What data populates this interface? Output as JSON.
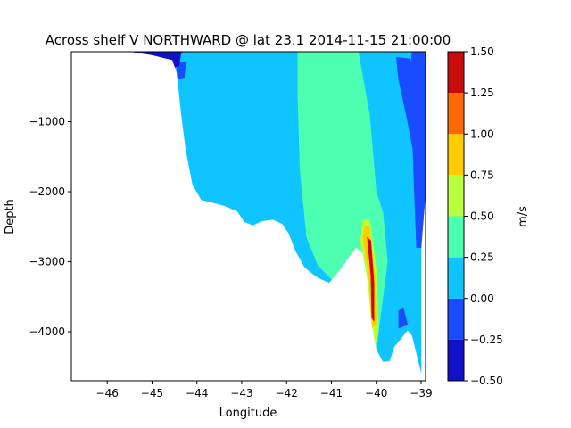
{
  "chart_data": {
    "type": "heatmap",
    "subtype": "filled-contour depth section",
    "title": "Across shelf V NORTHWARD @ lat 23.1 2014-11-15 21:00:00",
    "xlabel": "Longitude",
    "ylabel": "Depth",
    "xlim": [
      -46.8,
      -38.9
    ],
    "ylim": [
      -4700,
      0
    ],
    "xticks": [
      -46,
      -45,
      -44,
      -43,
      -42,
      -41,
      -40,
      -39
    ],
    "xtick_labels": [
      "−46",
      "−45",
      "−44",
      "−43",
      "−42",
      "−41",
      "−40",
      "−39"
    ],
    "yticks": [
      -1000,
      -2000,
      -3000,
      -4000
    ],
    "ytick_labels": [
      "−1000",
      "−2000",
      "−3000",
      "−4000"
    ],
    "grid": false,
    "colorbar": {
      "label": "m/s",
      "levels": [
        -0.5,
        -0.25,
        0.0,
        0.25,
        0.5,
        0.75,
        1.0,
        1.25,
        1.5
      ],
      "tick_labels": [
        "−0.50",
        "−0.25",
        "0.00",
        "0.25",
        "0.50",
        "0.75",
        "1.00",
        "1.25",
        "1.50"
      ],
      "colors": [
        "#1010c8",
        "#1a4cff",
        "#10c4ff",
        "#4dffb0",
        "#b8ff40",
        "#ffcc00",
        "#ff6a00",
        "#c80c0c"
      ]
    },
    "bathymetry": [
      [
        -46.8,
        0
      ],
      [
        -45.5,
        0
      ],
      [
        -45.0,
        -50
      ],
      [
        -44.55,
        -120
      ],
      [
        -44.45,
        -300
      ],
      [
        -44.35,
        -900
      ],
      [
        -44.25,
        -1400
      ],
      [
        -44.1,
        -1900
      ],
      [
        -43.9,
        -2120
      ],
      [
        -43.7,
        -2150
      ],
      [
        -43.4,
        -2200
      ],
      [
        -43.1,
        -2280
      ],
      [
        -42.95,
        -2430
      ],
      [
        -42.75,
        -2480
      ],
      [
        -42.55,
        -2420
      ],
      [
        -42.3,
        -2400
      ],
      [
        -42.1,
        -2460
      ],
      [
        -41.95,
        -2600
      ],
      [
        -41.8,
        -2850
      ],
      [
        -41.6,
        -3080
      ],
      [
        -41.45,
        -3160
      ],
      [
        -41.3,
        -3230
      ],
      [
        -41.05,
        -3300
      ],
      [
        -40.85,
        -3150
      ],
      [
        -40.65,
        -2970
      ],
      [
        -40.45,
        -2800
      ],
      [
        -40.3,
        -2880
      ],
      [
        -40.2,
        -3250
      ],
      [
        -40.1,
        -3900
      ],
      [
        -40.0,
        -4250
      ],
      [
        -39.85,
        -4430
      ],
      [
        -39.7,
        -4420
      ],
      [
        -39.6,
        -4220
      ],
      [
        -39.45,
        -4100
      ],
      [
        -39.3,
        -3980
      ],
      [
        -39.2,
        -4060
      ],
      [
        -39.1,
        -4320
      ],
      [
        -38.98,
        -4640
      ],
      [
        -38.9,
        -4700
      ]
    ],
    "regions": [
      {
        "level": 0.125,
        "points": [
          [
            -46.0,
            0
          ],
          [
            -39.0,
            0
          ],
          [
            -39.0,
            -4700
          ],
          [
            -46.0,
            -4700
          ]
        ]
      },
      {
        "level": -0.125,
        "points": [
          [
            -45.6,
            0
          ],
          [
            -44.3,
            0
          ],
          [
            -44.45,
            -80
          ],
          [
            -44.45,
            -400
          ],
          [
            -44.28,
            -380
          ],
          [
            -44.25,
            -150
          ],
          [
            -44.9,
            -140
          ],
          [
            -45.3,
            -80
          ]
        ]
      },
      {
        "level": -0.375,
        "points": [
          [
            -45.4,
            0
          ],
          [
            -44.35,
            0
          ],
          [
            -44.4,
            -200
          ],
          [
            -44.55,
            -240
          ],
          [
            -44.6,
            -100
          ],
          [
            -45.0,
            -100
          ]
        ]
      },
      {
        "level": 0.375,
        "points": [
          [
            -41.75,
            0
          ],
          [
            -40.4,
            0
          ],
          [
            -40.15,
            -900
          ],
          [
            -40.0,
            -2000
          ],
          [
            -39.85,
            -2300
          ],
          [
            -39.75,
            -3000
          ],
          [
            -39.85,
            -3500
          ],
          [
            -39.95,
            -4000
          ],
          [
            -40.0,
            -4300
          ],
          [
            -40.2,
            -3800
          ],
          [
            -40.55,
            -3100
          ],
          [
            -41.0,
            -3250
          ],
          [
            -41.3,
            -3050
          ],
          [
            -41.55,
            -2650
          ],
          [
            -41.7,
            -1700
          ],
          [
            -41.75,
            -600
          ]
        ]
      },
      {
        "level": -0.125,
        "points": [
          [
            -39.55,
            -80
          ],
          [
            -39.25,
            -100
          ],
          [
            -39.1,
            -400
          ],
          [
            -39.05,
            -1200
          ],
          [
            -39.15,
            -1500
          ],
          [
            -39.3,
            -1000
          ],
          [
            -39.5,
            -400
          ]
        ]
      },
      {
        "level": -0.125,
        "points": [
          [
            -39.2,
            0
          ],
          [
            -38.9,
            0
          ],
          [
            -38.9,
            -2000
          ],
          [
            -39.0,
            -2800
          ],
          [
            -39.1,
            -2800
          ],
          [
            -39.15,
            -2000
          ],
          [
            -39.2,
            -1100
          ],
          [
            -39.25,
            -300
          ]
        ]
      },
      {
        "level": -0.125,
        "points": [
          [
            -39.5,
            -3700
          ],
          [
            -39.4,
            -3650
          ],
          [
            -39.3,
            -3900
          ],
          [
            -39.5,
            -3950
          ]
        ]
      },
      {
        "level": 0.625,
        "points": [
          [
            -40.3,
            -2400
          ],
          [
            -40.15,
            -2400
          ],
          [
            -40.0,
            -3100
          ],
          [
            -39.95,
            -4000
          ],
          [
            -40.05,
            -4250
          ],
          [
            -40.2,
            -3500
          ],
          [
            -40.3,
            -3000
          ],
          [
            -40.35,
            -2700
          ]
        ]
      },
      {
        "level": 0.875,
        "points": [
          [
            -40.25,
            -2480
          ],
          [
            -40.15,
            -2500
          ],
          [
            -40.03,
            -3200
          ],
          [
            -40.0,
            -3900
          ],
          [
            -40.1,
            -3950
          ],
          [
            -40.15,
            -3300
          ],
          [
            -40.25,
            -2850
          ],
          [
            -40.3,
            -2650
          ]
        ]
      },
      {
        "level": 1.375,
        "points": [
          [
            -40.2,
            -2650
          ],
          [
            -40.12,
            -2700
          ],
          [
            -40.05,
            -3300
          ],
          [
            -40.05,
            -3850
          ],
          [
            -40.1,
            -3800
          ],
          [
            -40.12,
            -3200
          ]
        ]
      }
    ]
  }
}
